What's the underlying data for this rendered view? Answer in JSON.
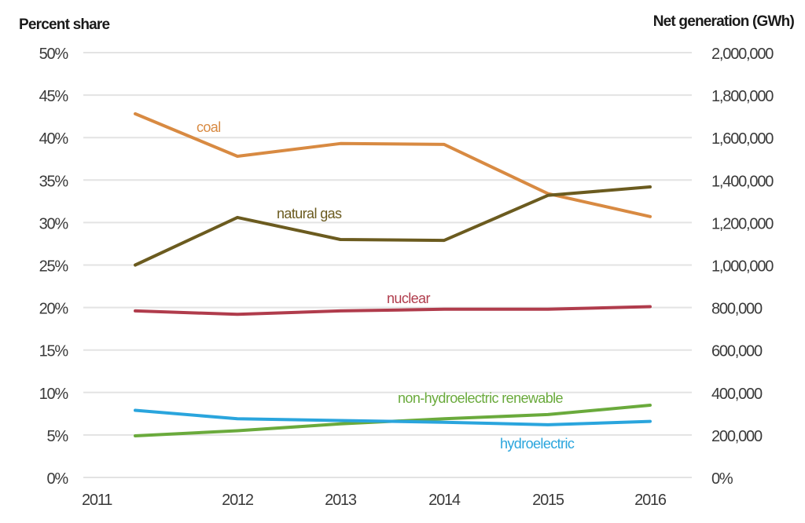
{
  "chart_data": {
    "type": "line",
    "title": "",
    "ylabel_left": "Percent share",
    "ylabel_right": "Net generation (GWh)",
    "x": [
      "2011",
      "2012",
      "2013",
      "2014",
      "2015",
      "2016"
    ],
    "x_tick_labels": [
      "2011",
      "2012",
      "2013",
      "2014",
      "2015",
      "2016"
    ],
    "ylim": [
      0,
      50
    ],
    "ylim_right": [
      0,
      2000000
    ],
    "y_ticks_left": [
      "0%",
      "5%",
      "10%",
      "15%",
      "20%",
      "25%",
      "30%",
      "35%",
      "40%",
      "45%",
      "50%"
    ],
    "y_ticks_right": [
      "0%",
      "200,000",
      "400,000",
      "600,000",
      "800,000",
      "1,000,000",
      "1,200,000",
      "1,400,000",
      "1,600,000",
      "1,800,000",
      "2,000,000"
    ],
    "grid": true,
    "series": [
      {
        "name": "coal",
        "color": "#d88a42",
        "values": [
          42.8,
          37.8,
          39.3,
          39.2,
          33.4,
          30.7
        ]
      },
      {
        "name": "natural gas",
        "color": "#6b5b1f",
        "values": [
          25.0,
          30.6,
          28.0,
          27.9,
          33.2,
          34.2
        ]
      },
      {
        "name": "nuclear",
        "color": "#b03c4c",
        "values": [
          19.6,
          19.2,
          19.6,
          19.8,
          19.8,
          20.1
        ]
      },
      {
        "name": "non-hydroelectric renewable",
        "color": "#6aaa3c",
        "values": [
          4.9,
          5.5,
          6.3,
          6.9,
          7.4,
          8.5
        ]
      },
      {
        "name": "hydroelectric",
        "color": "#2aa5dd",
        "values": [
          7.9,
          6.9,
          6.7,
          6.5,
          6.2,
          6.6
        ]
      }
    ]
  }
}
